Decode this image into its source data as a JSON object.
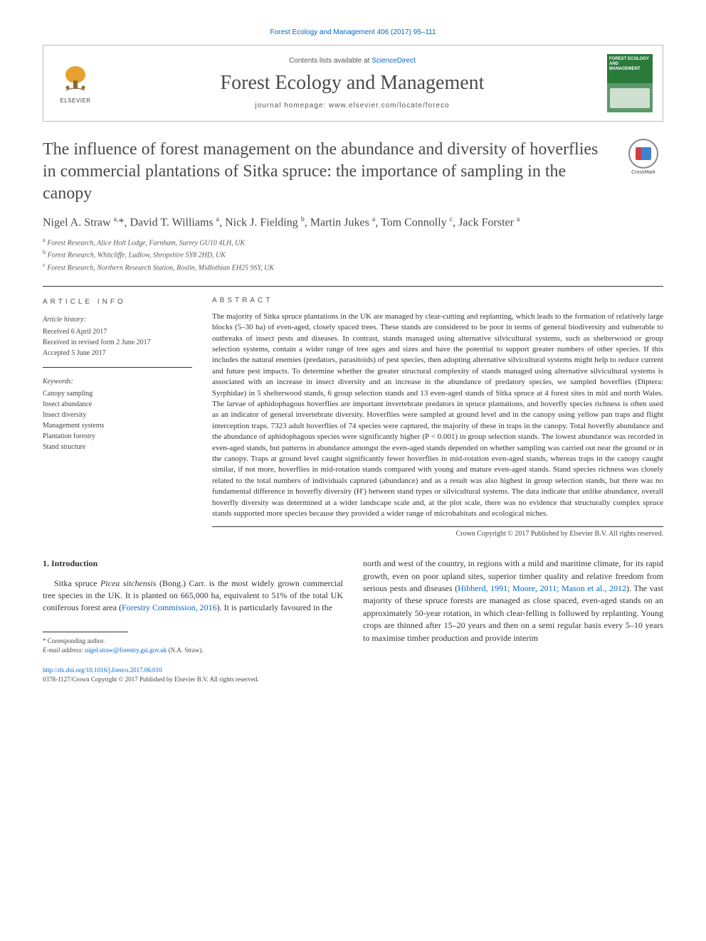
{
  "header": {
    "citation": "Forest Ecology and Management 406 (2017) 95–111",
    "contents_prefix": "Contents lists available at ",
    "contents_link": "ScienceDirect",
    "journal_name": "Forest Ecology and Management",
    "homepage_prefix": "journal homepage: ",
    "homepage_url": "www.elsevier.com/locate/foreco",
    "publisher": "ELSEVIER",
    "cover_title": "FOREST ECOLOGY AND MANAGEMENT"
  },
  "article": {
    "title": "The influence of forest management on the abundance and diversity of hoverflies in commercial plantations of Sitka spruce: the importance of sampling in the canopy",
    "crossmark_label": "CrossMark",
    "authors_html": "Nigel A. Straw <sup>a,</sup>*, David T. Williams <sup>a</sup>, Nick J. Fielding <sup>b</sup>, Martin Jukes <sup>a</sup>, Tom Connolly <sup>c</sup>, Jack Forster <sup>a</sup>",
    "affiliations": [
      "Forest Research, Alice Holt Lodge, Farnham, Surrey GU10 4LH, UK",
      "Forest Research, Whitcliffe, Ludlow, Shropshire SY8 2HD, UK",
      "Forest Research, Northern Research Station, Roslin, Midlothian EH25 9SY, UK"
    ],
    "aff_markers": [
      "a",
      "b",
      "c"
    ]
  },
  "info": {
    "heading": "ARTICLE INFO",
    "history_label": "Article history:",
    "history": [
      "Received 6 April 2017",
      "Received in revised form 2 June 2017",
      "Accepted 5 June 2017"
    ],
    "keywords_label": "Keywords:",
    "keywords": [
      "Canopy sampling",
      "Insect abundance",
      "Insect diversity",
      "Management systems",
      "Plantation forestry",
      "Stand structure"
    ]
  },
  "abstract": {
    "heading": "ABSTRACT",
    "text": "The majority of Sitka spruce plantations in the UK are managed by clear-cutting and replanting, which leads to the formation of relatively large blocks (5–30 ha) of even-aged, closely spaced trees. These stands are considered to be poor in terms of general biodiversity and vulnerable to outbreaks of insect pests and diseases. In contrast, stands managed using alternative silvicultural systems, such as shelterwood or group selection systems, contain a wider range of tree ages and sizes and have the potential to support greater numbers of other species. If this includes the natural enemies (predators, parasitoids) of pest species, then adopting alternative silvicultural systems might help to reduce current and future pest impacts. To determine whether the greater structural complexity of stands managed using alternative silvicultural systems is associated with an increase in insect diversity and an increase in the abundance of predatory species, we sampled hoverflies (Diptera: Syrphidae) in 5 shelterwood stands, 6 group selection stands and 13 even-aged stands of Sitka spruce at 4 forest sites in mid and north Wales. The larvae of aphidophagous hoverflies are important invertebrate predators in spruce plantations, and hoverfly species richness is often used as an indicator of general invertebrate diversity. Hoverflies were sampled at ground level and in the canopy using yellow pan traps and flight interception traps. 7323 adult hoverflies of 74 species were captured, the majority of these in traps in the canopy. Total hoverfly abundance and the abundance of aphidophagous species were significantly higher (P < 0.001) in group selection stands. The lowest abundance was recorded in even-aged stands, but patterns in abundance amongst the even-aged stands depended on whether sampling was carried out near the ground or in the canopy. Traps at ground level caught significantly fewer hoverflies in mid-rotation even-aged stands, whereas traps in the canopy caught similar, if not more, hoverflies in mid-rotation stands compared with young and mature even-aged stands. Stand species richness was closely related to the total numbers of individuals captured (abundance) and as a result was also highest in group selection stands, but there was no fundamental difference in hoverfly diversity (H′) between stand types or silvicultural systems. The data indicate that unlike abundance, overall hoverfly diversity was determined at a wider landscape scale and, at the plot scale, there was no evidence that structurally complex spruce stands supported more species because they provided a wider range of microhabitats and ecological niches.",
    "copyright": "Crown Copyright © 2017 Published by Elsevier B.V. All rights reserved."
  },
  "body": {
    "section_number": "1.",
    "section_title": "Introduction",
    "col1_html": "Sitka spruce <span class=\"species\">Picea sitchensis</span> (Bong.) Carr. is the most widely grown commercial tree species in the UK. It is planted on 665,000 ha, equivalent to 51% of the total UK coniferous forest area (<span class=\"cite-link\">Forestry Commission, 2016</span>). It is particularly favoured in the",
    "col2_html": "north and west of the country, in regions with a mild and maritime climate, for its rapid growth, even on poor upland sites, superior timber quality and relative freedom from serious pests and diseases (<span class=\"cite-link\">Hibberd, 1991; Moore, 2011; Mason et al., 2012</span>). The vast majority of these spruce forests are managed as close spaced, even-aged stands on an approximately 50-year rotation, in which clear-felling is followed by replanting. Young crops are thinned after 15–20 years and then on a semi regular basis every 5–10 years to maximise timber production and provide interim"
  },
  "footnotes": {
    "corr": "* Corresponding author.",
    "email_label": "E-mail address:",
    "email": "nigel.straw@forestry.gsi.gov.uk",
    "email_paren": "(N.A. Straw)."
  },
  "footer": {
    "doi": "http://dx.doi.org/10.1016/j.foreco.2017.06.010",
    "issn_line": "0378-1127/Crown Copyright © 2017 Published by Elsevier B.V. All rights reserved."
  },
  "colors": {
    "link": "#0066cc",
    "heading": "#4a4a4a",
    "rule": "#333333",
    "journal_green": "#2a7a3a"
  }
}
